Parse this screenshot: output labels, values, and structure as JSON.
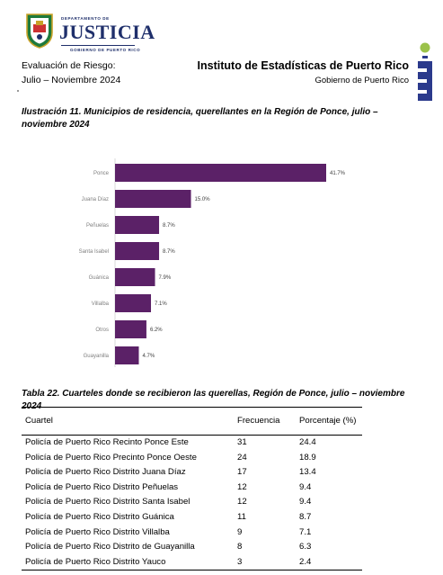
{
  "logo": {
    "department": "DEPARTAMENTO DE",
    "name": "JUSTICIA",
    "government": "GOBIERNO DE PUERTO RICO"
  },
  "header": {
    "left_line1": "Evaluación de Riesgo:",
    "left_line2": "Julio – Noviembre 2024",
    "right_line1": "Instituto de Estadísticas de Puerto Rico",
    "right_line2": "Gobierno de Puerto Rico"
  },
  "figure_caption": {
    "number": "Ilustración 11",
    "text": ". Municipios de residencia, querellantes en la Región de Ponce, julio – noviembre 2024"
  },
  "chart_data": {
    "type": "bar",
    "orientation": "horizontal",
    "categories": [
      "Ponce",
      "Juana Díaz",
      "Peñuelas",
      "Santa Isabel",
      "Guánica",
      "Villalba",
      "Otros",
      "Guayanilla"
    ],
    "values": [
      41.7,
      15.0,
      8.7,
      8.7,
      7.9,
      7.1,
      6.2,
      4.7
    ],
    "value_labels": [
      "41.7%",
      "15.0%",
      "8.7%",
      "8.7%",
      "7.9%",
      "7.1%",
      "6.2%",
      "4.7%"
    ],
    "bar_color": "#5b2167",
    "title": "",
    "xlabel": "",
    "ylabel": "",
    "grid": false
  },
  "table_caption": {
    "number": "Tabla 22",
    "text": ". Cuarteles donde se recibieron las querellas, Región de Ponce, julio – noviembre 2024"
  },
  "table": {
    "headers": [
      "Cuartel",
      "Frecuencia",
      "Porcentaje (%)"
    ],
    "rows": [
      [
        "Policía de Puerto Rico Recinto Ponce Este",
        "31",
        "24.4"
      ],
      [
        "Policía de Puerto Rico Precinto Ponce Oeste",
        "24",
        "18.9"
      ],
      [
        "Policía de Puerto Rico Distrito Juana Díaz",
        "17",
        "13.4"
      ],
      [
        "Policía de Puerto Rico Distrito Peñuelas",
        "12",
        "9.4"
      ],
      [
        "Policía de Puerto Rico Distrito Santa Isabel",
        "12",
        "9.4"
      ],
      [
        "Policía de Puerto Rico Distrito Guánica",
        "11",
        "8.7"
      ],
      [
        "Policía de Puerto Rico Distrito Villalba",
        "9",
        "7.1"
      ],
      [
        "Policía de Puerto Rico Distrito de Guayanilla",
        "8",
        "6.3"
      ],
      [
        "Policía de Puerto Rico Distrito Yauco",
        "3",
        "2.4"
      ]
    ]
  }
}
